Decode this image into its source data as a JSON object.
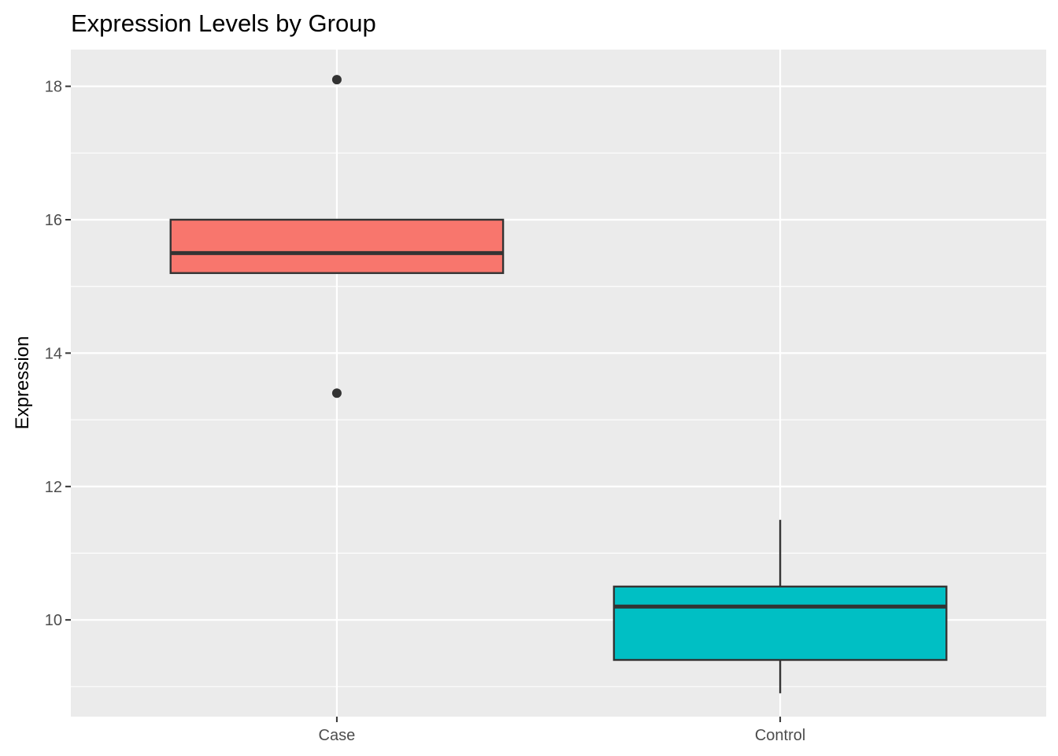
{
  "chart_data": {
    "type": "boxplot",
    "title": "Expression Levels by Group",
    "xlabel": "",
    "ylabel": "Expression",
    "ylim": [
      8.55,
      18.55
    ],
    "y_ticks": [
      10,
      12,
      14,
      16,
      18
    ],
    "y_tick_labels": [
      "10",
      "12",
      "14",
      "16",
      "18"
    ],
    "categories": [
      "Case",
      "Control"
    ],
    "grid": true,
    "legend": "none",
    "boxes": [
      {
        "category": "Case",
        "color": "#F8766D",
        "lower_whisker": null,
        "q1": 15.2,
        "median": 15.5,
        "q3": 16.0,
        "upper_whisker": null,
        "outliers": [
          18.1,
          13.4
        ]
      },
      {
        "category": "Control",
        "color": "#00BFC4",
        "lower_whisker": 8.9,
        "q1": 9.4,
        "median": 10.2,
        "q3": 10.5,
        "upper_whisker": 11.5,
        "outliers": []
      }
    ]
  }
}
